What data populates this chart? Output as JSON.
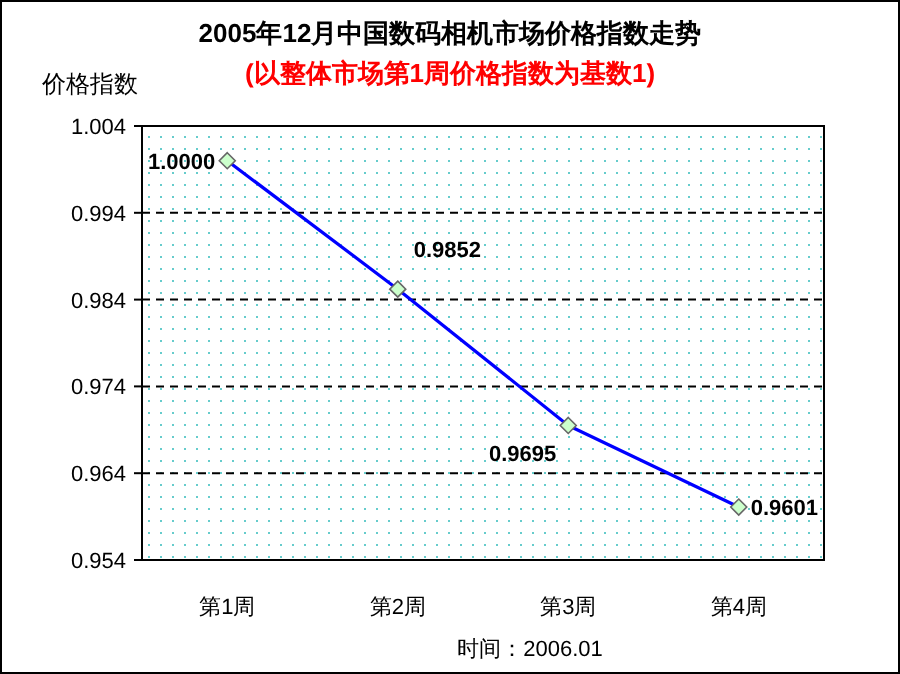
{
  "chart_data": {
    "type": "line",
    "title": "2005年12月中国数码相机市场价格指数走势",
    "subtitle": "(以整体市场第1周价格指数为基数1)",
    "ylabel": "价格指数",
    "categories": [
      "第1周",
      "第2周",
      "第3周",
      "第4周"
    ],
    "values": [
      1.0,
      0.9852,
      0.9695,
      0.9601
    ],
    "value_labels": [
      "1.0000",
      "0.9852",
      "0.9695",
      "0.9601"
    ],
    "color": "#0000ff",
    "marker": "diamond",
    "line_style": "solid",
    "grid": "y",
    "ylim": [
      0.954,
      1.004
    ],
    "yticks": [
      "1.004",
      "0.994",
      "0.984",
      "0.974",
      "0.964",
      "0.954"
    ],
    "annotations": [
      "时间：2006.01"
    ]
  }
}
